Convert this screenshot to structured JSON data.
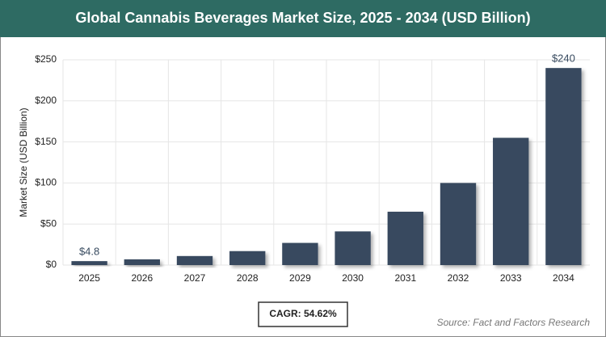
{
  "chart_data": {
    "type": "bar",
    "title": "Global Cannabis Beverages Market Size, 2025 - 2034 (USD Billion)",
    "y_label": "Market Size (USD Billion)",
    "categories": [
      "2025",
      "2026",
      "2027",
      "2028",
      "2029",
      "2030",
      "2031",
      "2032",
      "2033",
      "2034"
    ],
    "values": [
      4.8,
      7,
      11,
      17,
      27,
      41,
      65,
      100,
      155,
      240
    ],
    "value_labels": [
      "$4.8",
      null,
      null,
      null,
      null,
      null,
      null,
      null,
      null,
      "$240"
    ],
    "color": "#374a5f",
    "ylim": [
      0,
      250
    ],
    "yticks": [
      {
        "value": 0,
        "label": "$0"
      },
      {
        "value": 50,
        "label": "$50"
      },
      {
        "value": 100,
        "label": "$100"
      },
      {
        "value": 150,
        "label": "$150"
      },
      {
        "value": 200,
        "label": "$200"
      },
      {
        "value": 250,
        "label": "$250"
      }
    ],
    "grid": true,
    "annotation": "CAGR: 54.62%",
    "source": "Source: Fact and Factors Research"
  }
}
